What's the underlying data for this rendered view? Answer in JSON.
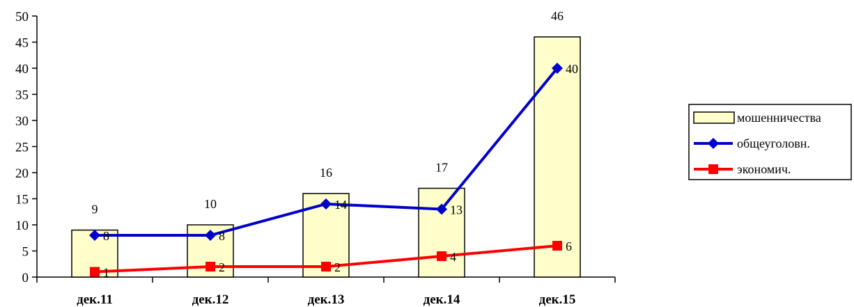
{
  "chart_data": {
    "type": "bar",
    "categories": [
      "дек.11",
      "дек.12",
      "дек.13",
      "дек.14",
      "дек.15"
    ],
    "ylim": [
      0,
      50
    ],
    "yticks": [
      0,
      5,
      10,
      15,
      20,
      25,
      30,
      35,
      40,
      45,
      50
    ],
    "grid": false,
    "legend_position": "right",
    "series": [
      {
        "name": "мошенничества",
        "type": "bar",
        "values": [
          9,
          10,
          16,
          17,
          46
        ],
        "color": "#FFFFCC",
        "border": "#000000"
      },
      {
        "name": "общеуголовн.",
        "type": "line",
        "marker": "diamond",
        "values": [
          8,
          8,
          14,
          13,
          40
        ],
        "color": "#0000CC"
      },
      {
        "name": "экономич.",
        "type": "line",
        "marker": "square",
        "values": [
          1,
          2,
          2,
          4,
          6
        ],
        "color": "#FF0000"
      }
    ]
  }
}
